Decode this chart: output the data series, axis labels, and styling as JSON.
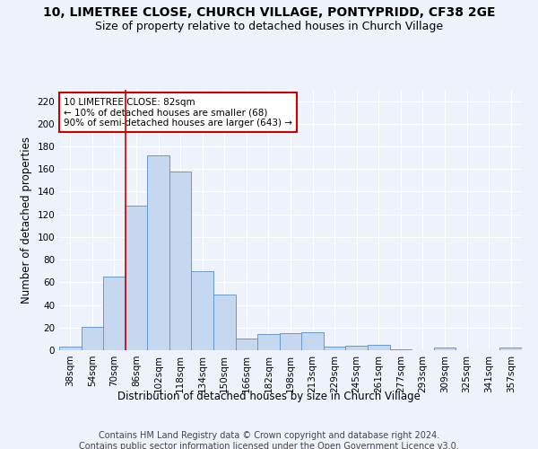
{
  "title": "10, LIMETREE CLOSE, CHURCH VILLAGE, PONTYPRIDD, CF38 2GE",
  "subtitle": "Size of property relative to detached houses in Church Village",
  "xlabel": "Distribution of detached houses by size in Church Village",
  "ylabel": "Number of detached properties",
  "footer_line1": "Contains HM Land Registry data © Crown copyright and database right 2024.",
  "footer_line2": "Contains public sector information licensed under the Open Government Licence v3.0.",
  "categories": [
    "38sqm",
    "54sqm",
    "70sqm",
    "86sqm",
    "102sqm",
    "118sqm",
    "134sqm",
    "150sqm",
    "166sqm",
    "182sqm",
    "198sqm",
    "213sqm",
    "229sqm",
    "245sqm",
    "261sqm",
    "277sqm",
    "293sqm",
    "309sqm",
    "325sqm",
    "341sqm",
    "357sqm"
  ],
  "values": [
    3,
    21,
    65,
    128,
    172,
    158,
    70,
    49,
    10,
    14,
    15,
    16,
    3,
    4,
    5,
    1,
    0,
    2,
    0,
    0,
    2
  ],
  "bar_color": "#c5d8f0",
  "bar_edge_color": "#6699cc",
  "vline_color": "#cc0000",
  "vline_x_index": 3,
  "annotation_text": "10 LIMETREE CLOSE: 82sqm\n← 10% of detached houses are smaller (68)\n90% of semi-detached houses are larger (643) →",
  "annotation_box_color": "#ffffff",
  "annotation_box_edge": "#cc0000",
  "ylim": [
    0,
    230
  ],
  "yticks": [
    0,
    20,
    40,
    60,
    80,
    100,
    120,
    140,
    160,
    180,
    200,
    220
  ],
  "background_color": "#eef2fb",
  "grid_color": "#ffffff",
  "title_fontsize": 10,
  "subtitle_fontsize": 9,
  "axis_label_fontsize": 8.5,
  "tick_fontsize": 7.5,
  "annotation_fontsize": 7.5,
  "footer_fontsize": 7
}
